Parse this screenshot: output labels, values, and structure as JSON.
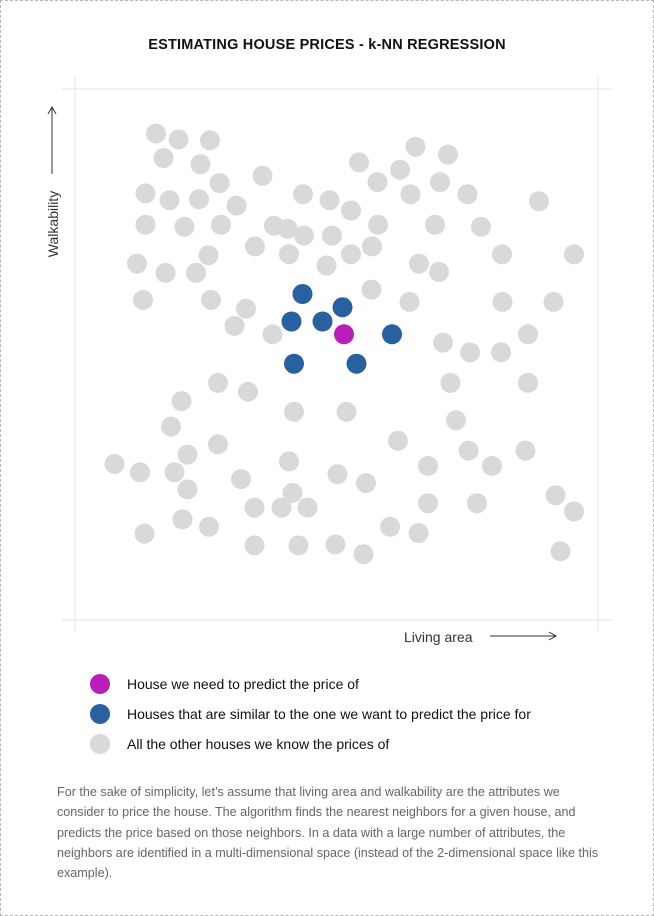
{
  "colors": {
    "target": "#b81fb8",
    "neighbor": "#2860a0",
    "other": "#d9d9d9",
    "axis": "#e3e3e3",
    "text": "#111111",
    "note_text": "#666666"
  },
  "chart_data": {
    "type": "scatter",
    "title": "ESTIMATING HOUSE PRICES - k-NN REGRESSION",
    "xlabel": "Living area",
    "ylabel": "Walkability",
    "xlim": [
      0,
      100
    ],
    "ylim": [
      0,
      100
    ],
    "series": [
      {
        "name": "House we need to predict the price of",
        "role": "target",
        "points": [
          [
            51.2,
            53.1
          ]
        ]
      },
      {
        "name": "Houses that are similar to the one we want to predict the price for",
        "role": "neighbor",
        "points": [
          [
            42.9,
            61.3
          ],
          [
            50.9,
            58.6
          ],
          [
            40.7,
            55.7
          ],
          [
            46.9,
            55.7
          ],
          [
            60.8,
            53.1
          ],
          [
            41.2,
            47.1
          ],
          [
            53.7,
            47.1
          ]
        ]
      },
      {
        "name": "All the other houses we know the prices of",
        "role": "other",
        "points": [
          [
            13.6,
            94.0
          ],
          [
            18.1,
            92.8
          ],
          [
            24.4,
            92.6
          ],
          [
            15.1,
            89.0
          ],
          [
            22.5,
            87.7
          ],
          [
            65.5,
            91.3
          ],
          [
            72.0,
            89.7
          ],
          [
            54.2,
            88.1
          ],
          [
            62.4,
            86.6
          ],
          [
            34.9,
            85.4
          ],
          [
            26.3,
            83.9
          ],
          [
            57.9,
            84.1
          ],
          [
            70.4,
            84.1
          ],
          [
            11.5,
            81.8
          ],
          [
            16.3,
            80.4
          ],
          [
            22.2,
            80.6
          ],
          [
            43.0,
            81.6
          ],
          [
            48.3,
            80.4
          ],
          [
            64.5,
            81.6
          ],
          [
            75.9,
            81.6
          ],
          [
            90.2,
            80.2
          ],
          [
            29.7,
            79.3
          ],
          [
            52.6,
            78.3
          ],
          [
            11.5,
            75.4
          ],
          [
            19.3,
            75.0
          ],
          [
            26.6,
            75.4
          ],
          [
            37.2,
            75.2
          ],
          [
            39.9,
            74.6
          ],
          [
            43.2,
            73.2
          ],
          [
            48.8,
            73.2
          ],
          [
            58.0,
            75.4
          ],
          [
            69.4,
            75.4
          ],
          [
            78.6,
            75.0
          ],
          [
            33.4,
            71.0
          ],
          [
            56.8,
            71.0
          ],
          [
            24.1,
            69.2
          ],
          [
            40.2,
            69.4
          ],
          [
            52.6,
            69.4
          ],
          [
            9.8,
            67.5
          ],
          [
            47.7,
            67.1
          ],
          [
            66.2,
            67.5
          ],
          [
            82.8,
            69.4
          ],
          [
            97.2,
            69.4
          ],
          [
            15.5,
            65.6
          ],
          [
            21.6,
            65.6
          ],
          [
            70.2,
            65.8
          ],
          [
            56.7,
            62.2
          ],
          [
            11.0,
            60.1
          ],
          [
            24.6,
            60.1
          ],
          [
            31.6,
            58.3
          ],
          [
            64.3,
            59.7
          ],
          [
            82.9,
            59.7
          ],
          [
            93.1,
            59.7
          ],
          [
            29.3,
            54.8
          ],
          [
            36.9,
            53.1
          ],
          [
            88.0,
            53.1
          ],
          [
            71.0,
            51.4
          ],
          [
            76.4,
            49.4
          ],
          [
            82.6,
            49.4
          ],
          [
            26.0,
            43.2
          ],
          [
            32.0,
            41.4
          ],
          [
            88.0,
            43.2
          ],
          [
            72.5,
            43.2
          ],
          [
            18.7,
            39.5
          ],
          [
            41.2,
            37.3
          ],
          [
            51.7,
            37.3
          ],
          [
            73.6,
            35.6
          ],
          [
            16.6,
            34.3
          ],
          [
            62.0,
            31.4
          ],
          [
            26.0,
            30.7
          ],
          [
            76.1,
            29.4
          ],
          [
            19.9,
            28.6
          ],
          [
            87.5,
            29.4
          ],
          [
            5.3,
            26.7
          ],
          [
            40.2,
            27.2
          ],
          [
            68.0,
            26.3
          ],
          [
            10.4,
            25.0
          ],
          [
            17.3,
            25.0
          ],
          [
            80.8,
            26.3
          ],
          [
            30.6,
            23.6
          ],
          [
            49.9,
            24.6
          ],
          [
            55.6,
            22.8
          ],
          [
            19.9,
            21.5
          ],
          [
            40.9,
            20.8
          ],
          [
            38.7,
            17.8
          ],
          [
            43.9,
            17.8
          ],
          [
            68.0,
            18.7
          ],
          [
            77.8,
            18.7
          ],
          [
            93.5,
            20.3
          ],
          [
            33.3,
            17.8
          ],
          [
            97.2,
            17.0
          ],
          [
            18.9,
            15.4
          ],
          [
            24.2,
            13.9
          ],
          [
            60.4,
            13.9
          ],
          [
            66.1,
            12.6
          ],
          [
            11.3,
            12.5
          ],
          [
            33.3,
            10.1
          ],
          [
            42.1,
            10.1
          ],
          [
            49.5,
            10.3
          ],
          [
            55.1,
            8.3
          ],
          [
            94.5,
            8.9
          ]
        ]
      }
    ],
    "grid": false,
    "legend_position": "bottom-left"
  },
  "note": "For the sake of simplicity, let’s assume that living area and walkability are the attributes we consider to price the house. The algorithm finds the nearest neighbors for a given house, and predicts the price based on those neighbors. In a data with a large number of attributes, the neighbors are identified in a multi-dimensional space (instead of the 2-dimensional space like this example)."
}
